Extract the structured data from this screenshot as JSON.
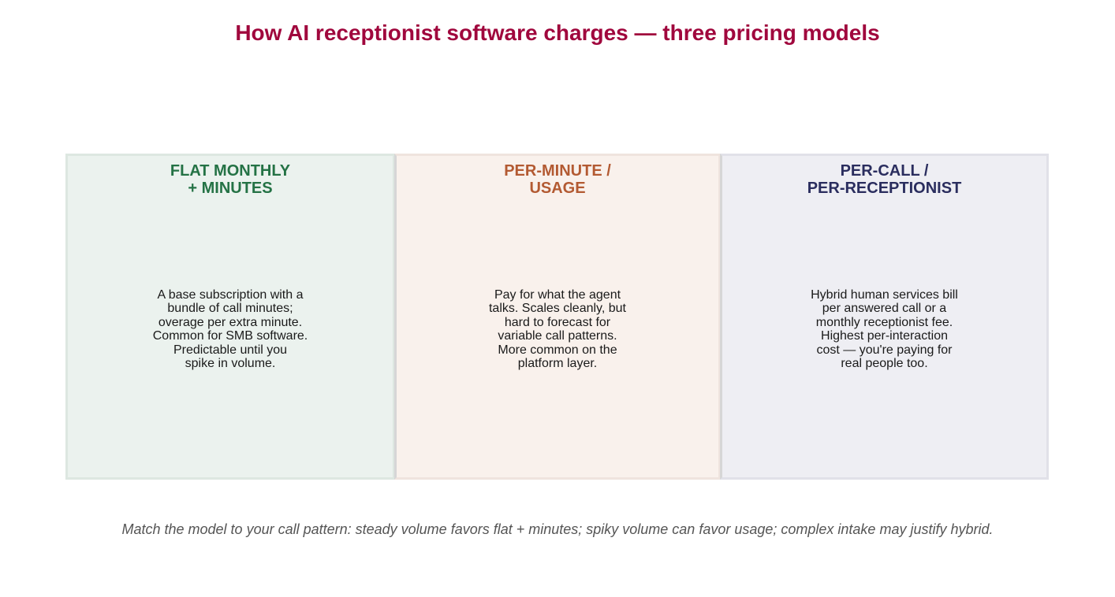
{
  "title": "How AI receptionist software charges — three pricing models",
  "colors": {
    "title": "#a0073d",
    "footnote": "#555555"
  },
  "panels": [
    {
      "heading": "FLAT MONTHLY\n+ MINUTES",
      "body": "A base subscription with a\nbundle of call minutes;\noverage per extra minute.\nCommon for SMB software.\nPredictable until you\nspike in volume.",
      "heading_color": "#247245",
      "fill_color": "#ebf2ee",
      "border_color": "#dde7e1"
    },
    {
      "heading": "PER-MINUTE /\nUSAGE",
      "body": "Pay for what the agent\ntalks. Scales cleanly, but\nhard to forecast for\nvariable call patterns.\nMore common on the\nplatform layer.",
      "heading_color": "#b35a32",
      "fill_color": "#f9f1ec",
      "border_color": "#efe4de"
    },
    {
      "heading": "PER-CALL /\nPER-RECEPTIONIST",
      "body": "Hybrid human services bill\nper answered call or a\nmonthly receptionist fee.\nHighest per-interaction\ncost — you're paying for\nreal people too.",
      "heading_color": "#2a2d5e",
      "fill_color": "#eeeef3",
      "border_color": "#e1e1e8"
    }
  ],
  "divider_color": "#d6d6d6",
  "footnote": "Match the model to your call pattern: steady volume favors flat + minutes; spiky volume can favor usage; complex intake may justify hybrid."
}
